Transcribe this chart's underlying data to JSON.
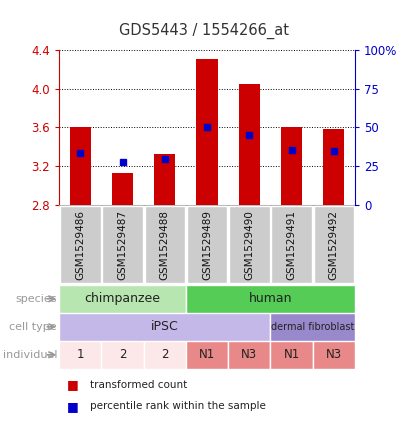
{
  "title": "GDS5443 / 1554266_at",
  "samples": [
    "GSM1529486",
    "GSM1529487",
    "GSM1529488",
    "GSM1529489",
    "GSM1529490",
    "GSM1529491",
    "GSM1529492"
  ],
  "bar_heights": [
    3.6,
    3.13,
    3.32,
    4.3,
    4.05,
    3.6,
    3.58
  ],
  "bar_base": 2.8,
  "percentile_values": [
    3.33,
    3.24,
    3.27,
    3.6,
    3.52,
    3.37,
    3.35
  ],
  "bar_color": "#cc0000",
  "percentile_color": "#0000cc",
  "ylim": [
    2.8,
    4.4
  ],
  "yticks_left": [
    2.8,
    3.2,
    3.6,
    4.0,
    4.4
  ],
  "yticks_right": [
    0,
    25,
    50,
    75,
    100
  ],
  "ylabel_left_color": "#cc0000",
  "ylabel_right_color": "#0000cc",
  "grid_color": "#000000",
  "species": [
    "chimpanzee",
    "chimpanzee",
    "chimpanzee",
    "human",
    "human",
    "human",
    "human"
  ],
  "species_colors": {
    "chimpanzee": "#b8e6b0",
    "human": "#55cc55"
  },
  "cell_type": [
    "iPSC",
    "iPSC",
    "iPSC",
    "iPSC",
    "iPSC",
    "dermal fibroblast",
    "dermal fibroblast"
  ],
  "cell_type_colors": {
    "iPSC": "#c4b8e8",
    "dermal fibroblast": "#9988cc"
  },
  "individual": [
    "1",
    "2",
    "2",
    "N1",
    "N3",
    "N1",
    "N3"
  ],
  "ind_light_color": "#fce8e8",
  "ind_dark_color": "#e88888",
  "ind_light": [
    "1",
    "2"
  ],
  "ind_dark": [
    "N1",
    "N3"
  ],
  "row_label_color": "#999999",
  "legend_red_label": "transformed count",
  "legend_blue_label": "percentile rank within the sample",
  "background_color": "#ffffff",
  "xtick_bg": "#cccccc",
  "bar_width": 0.5
}
